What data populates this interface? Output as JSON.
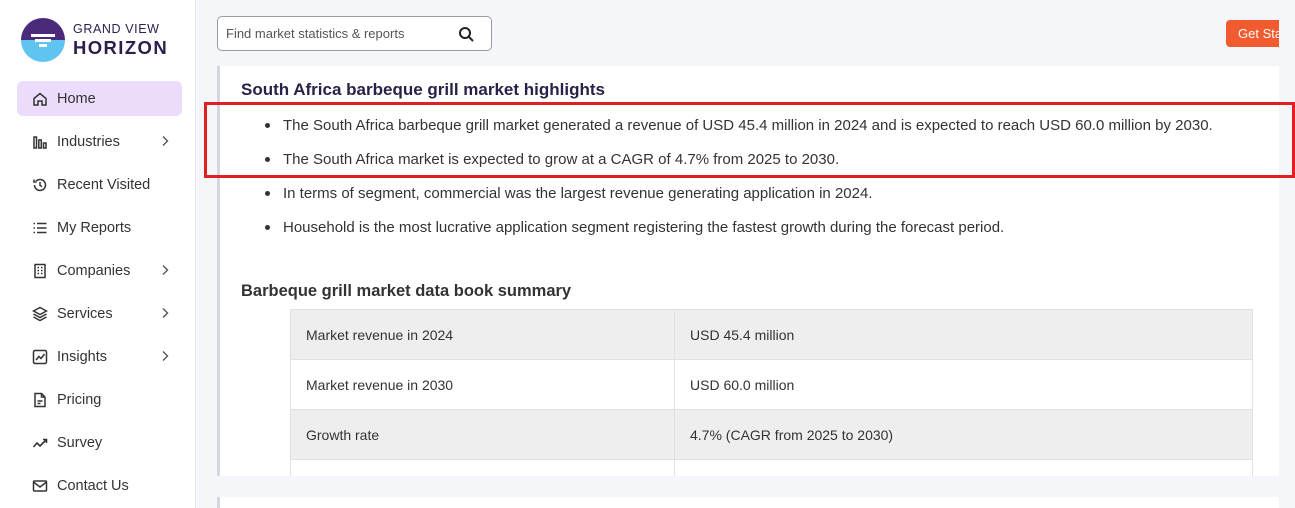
{
  "brand": {
    "top": "GRAND VIEW",
    "bottom": "HORIZON"
  },
  "sidebar": {
    "items": [
      {
        "label": "Home"
      },
      {
        "label": "Industries"
      },
      {
        "label": "Recent Visited"
      },
      {
        "label": "My Reports"
      },
      {
        "label": "Companies"
      },
      {
        "label": "Services"
      },
      {
        "label": "Insights"
      },
      {
        "label": "Pricing"
      },
      {
        "label": "Survey"
      },
      {
        "label": "Contact Us"
      }
    ]
  },
  "search": {
    "placeholder": "Find market statistics & reports"
  },
  "header": {
    "cta_label": "Get Started"
  },
  "highlights": {
    "title": "South Africa barbeque grill market highlights",
    "bullets": [
      "The South Africa barbeque grill market generated a revenue of USD 45.4 million in 2024 and is expected to reach USD 60.0 million by 2030.",
      "The South Africa market is expected to grow at a CAGR of 4.7% from 2025 to 2030.",
      "In terms of segment, commercial was the largest revenue generating application in 2024.",
      "Household is the most lucrative application segment registering the fastest growth during the forecast period."
    ]
  },
  "summary": {
    "title": "Barbeque grill market data book summary",
    "rows": [
      {
        "key": "Market revenue in 2024",
        "value": "USD 45.4 million"
      },
      {
        "key": "Market revenue in 2030",
        "value": "USD 60.0 million"
      },
      {
        "key": "Growth rate",
        "value": "4.7% (CAGR from 2025 to 2030)"
      },
      {
        "key": "",
        "value": ""
      }
    ]
  },
  "colors": {
    "accent": "#ecdcfb",
    "cta": "#f25a30",
    "highlight": "#e02020",
    "brand": "#2c1d4d"
  }
}
